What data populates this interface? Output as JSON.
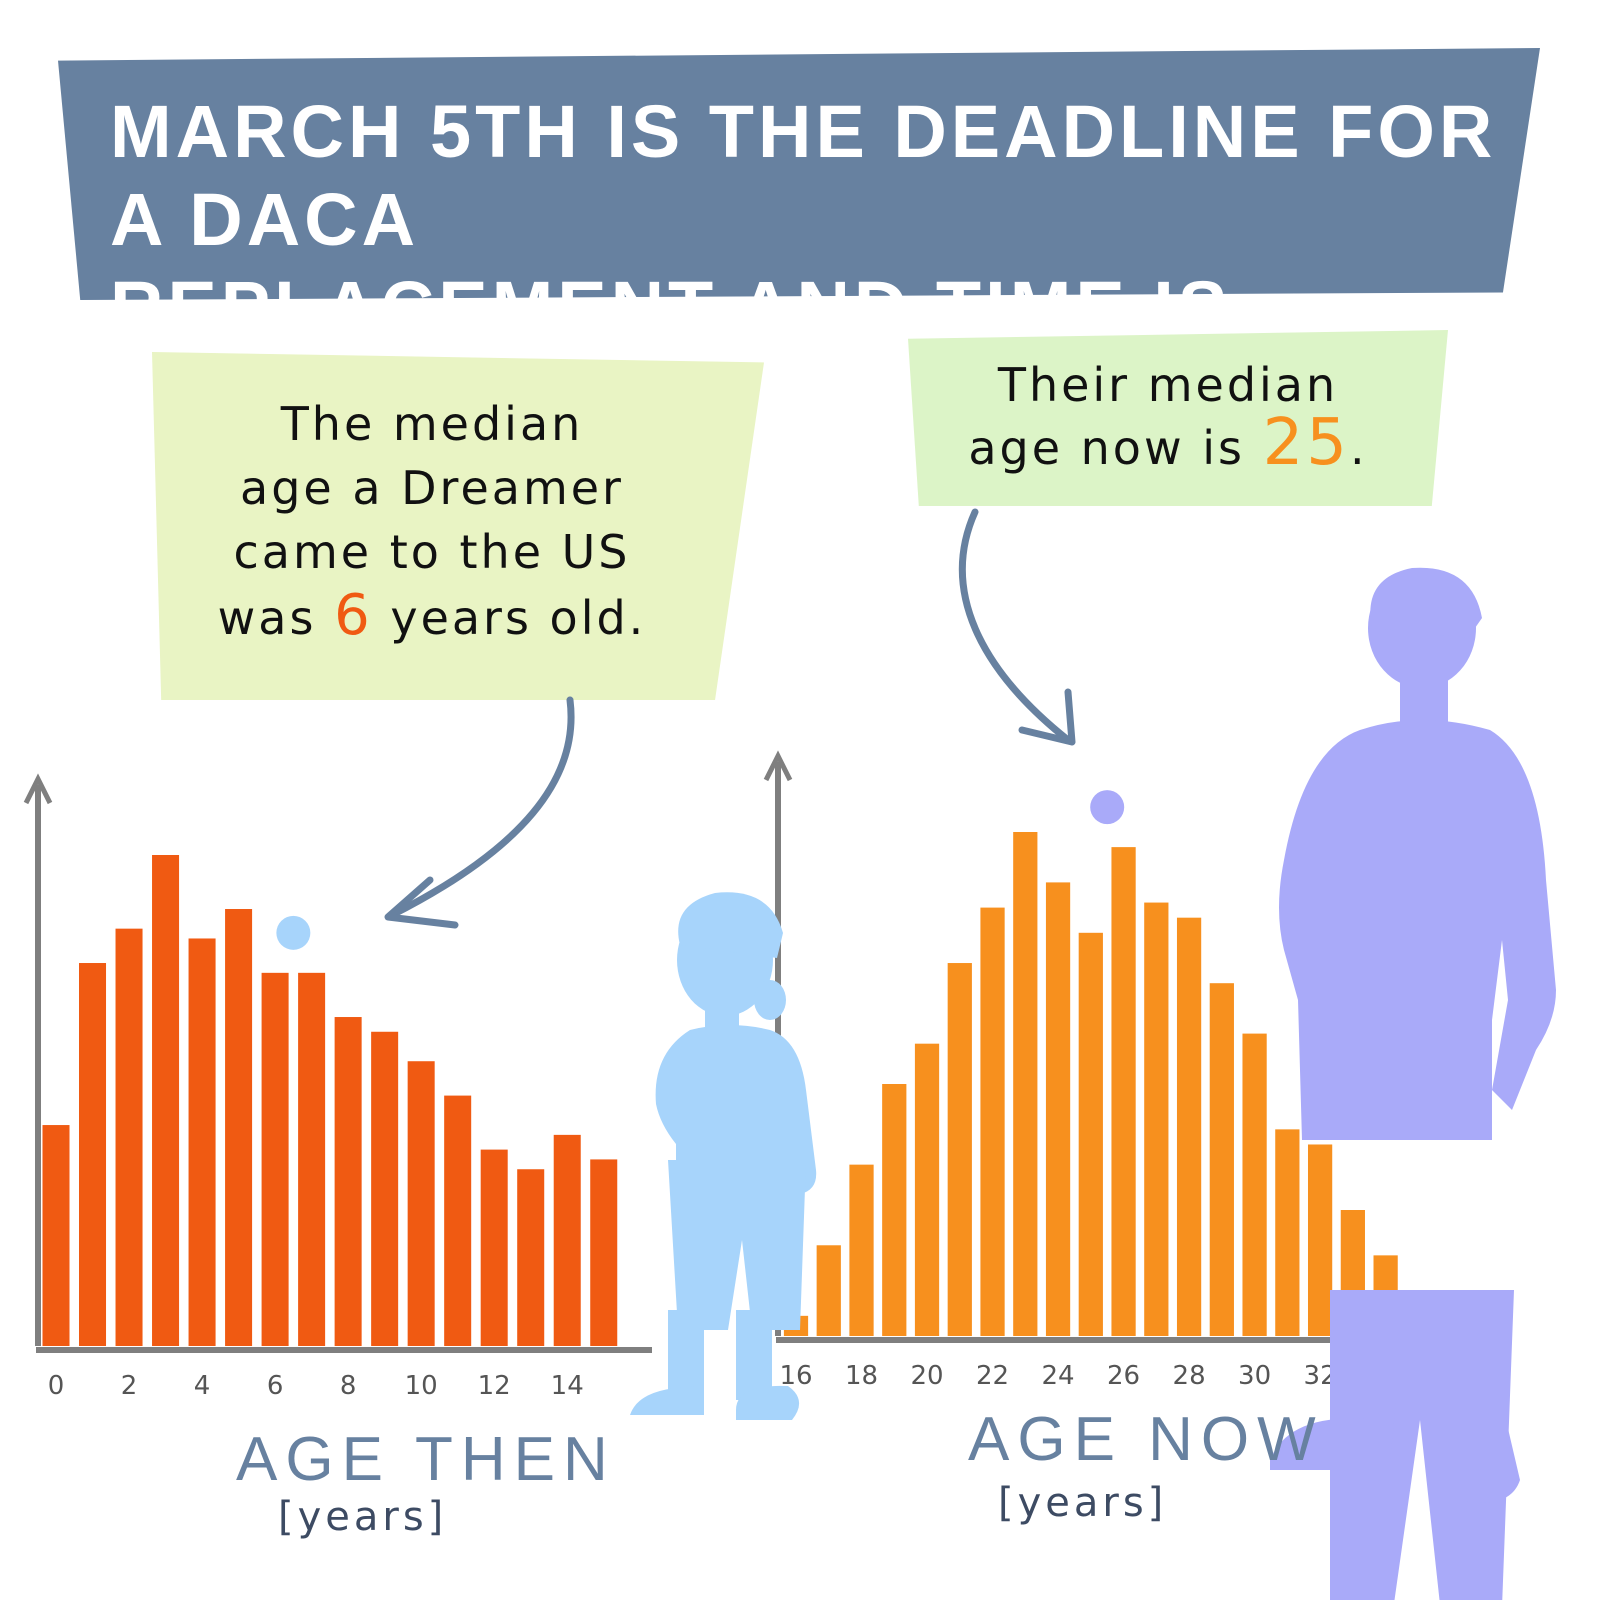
{
  "banner": {
    "line1": "MARCH 5TH IS THE DEADLINE FOR A DACA",
    "line2": "REPLACEMENT AND TIME IS RUNNING OUT."
  },
  "note_then": {
    "line1": "The median",
    "line2": "age a Dreamer",
    "line3": "came to the US",
    "line4_pre": "was",
    "highlight": "6",
    "line4_post": "years old."
  },
  "note_now": {
    "line1": "Their median",
    "line2_pre": "age now is",
    "highlight": "25",
    "line2_post": "."
  },
  "colors": {
    "banner": "#6781a0",
    "bars_then": "#f05a12",
    "bars_now": "#f7901e",
    "child": "#a7d4fb",
    "adult": "#a9aaf9",
    "axis": "#7f7f7f",
    "arrow": "#6781a0"
  },
  "icons": [
    "child-silhouette-icon",
    "adult-silhouette-icon",
    "curved-arrow-icon"
  ],
  "chart_data": [
    {
      "type": "bar",
      "xlabel": "AGE THEN",
      "xunit": "[years]",
      "x": [
        0,
        1,
        2,
        3,
        4,
        5,
        6,
        7,
        8,
        9,
        10,
        11,
        12,
        13,
        14,
        15
      ],
      "tick_labels": [
        "0",
        "2",
        "4",
        "6",
        "8",
        "10",
        "12",
        "14"
      ],
      "tick_values": [
        0,
        2,
        4,
        6,
        8,
        10,
        12,
        14
      ],
      "values": [
        45,
        78,
        85,
        100,
        83,
        89,
        76,
        76,
        67,
        64,
        58,
        51,
        40,
        36,
        43,
        38
      ],
      "median_marker": 6,
      "ylim": [
        0,
        100
      ]
    },
    {
      "type": "bar",
      "xlabel": "AGE NOW",
      "xunit": "[years]",
      "x": [
        16,
        17,
        18,
        19,
        20,
        21,
        22,
        23,
        24,
        25,
        26,
        27,
        28,
        29,
        30,
        31,
        32,
        33,
        34
      ],
      "tick_labels": [
        "16",
        "18",
        "20",
        "22",
        "24",
        "26",
        "28",
        "30",
        "32"
      ],
      "tick_values": [
        16,
        18,
        20,
        22,
        24,
        26,
        28,
        30,
        32
      ],
      "values": [
        4,
        18,
        34,
        50,
        58,
        74,
        85,
        100,
        90,
        80,
        97,
        86,
        83,
        70,
        60,
        41,
        38,
        25,
        16
      ],
      "median_marker": 25,
      "ylim": [
        0,
        100
      ]
    }
  ]
}
